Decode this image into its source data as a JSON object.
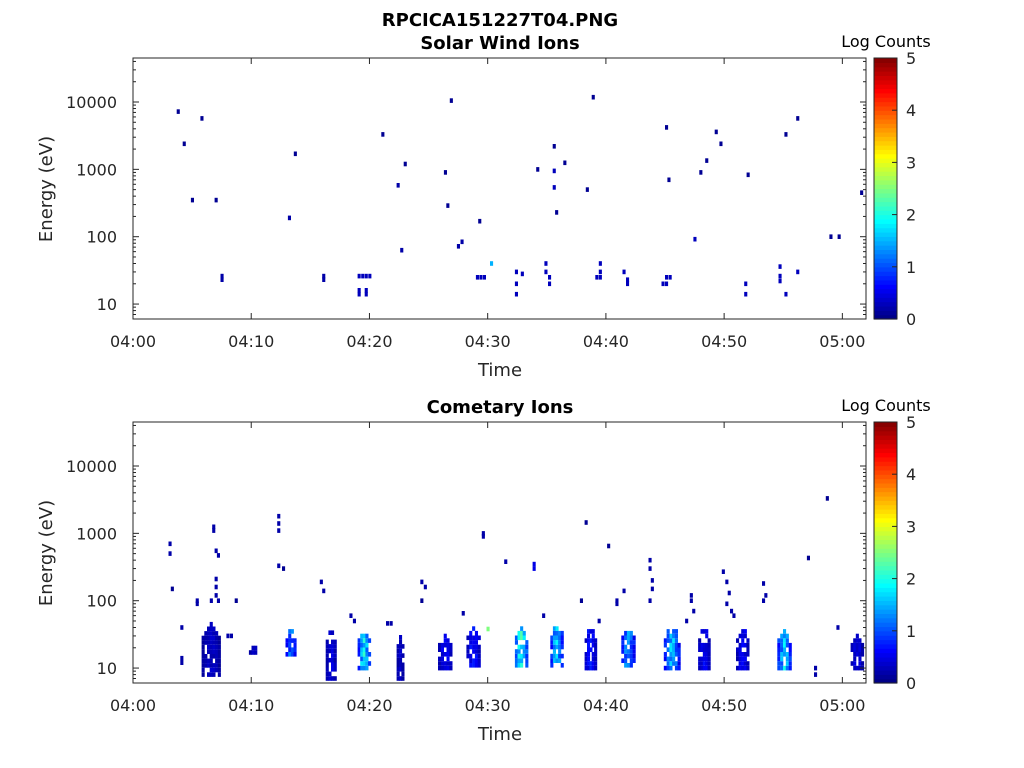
{
  "figure": {
    "title": "RPCICA151227T04.PNG"
  },
  "colormap": {
    "stops": [
      "#00007f",
      "#0000ff",
      "#007fff",
      "#00ffff",
      "#7fff7f",
      "#ffff00",
      "#ff7f00",
      "#ff0000",
      "#7f0000"
    ]
  },
  "chart_data": [
    {
      "type": "heatmap",
      "title": "Solar Wind Ions",
      "xlabel": "Time",
      "ylabel": "Energy (eV)",
      "x_range_minutes": [
        0,
        62
      ],
      "x_ticks": [
        {
          "minute": 0,
          "label": "04:00"
        },
        {
          "minute": 10,
          "label": "04:10"
        },
        {
          "minute": 20,
          "label": "04:20"
        },
        {
          "minute": 30,
          "label": "04:30"
        },
        {
          "minute": 40,
          "label": "04:40"
        },
        {
          "minute": 50,
          "label": "04:50"
        },
        {
          "minute": 60,
          "label": "05:00"
        }
      ],
      "y_scale": "log",
      "y_range": [
        6,
        45000
      ],
      "y_ticks": [
        {
          "value": 10,
          "label": "10"
        },
        {
          "value": 100,
          "label": "100"
        },
        {
          "value": 1000,
          "label": "1000"
        },
        {
          "value": 10000,
          "label": "10000"
        }
      ],
      "colorbar": {
        "label": "Log Counts",
        "range": [
          0,
          5
        ],
        "ticks": [
          "0",
          "1",
          "2",
          "3",
          "4",
          "5"
        ]
      },
      "cells": [
        [
          3.7,
          7200,
          0.1
        ],
        [
          4.2,
          2400,
          0.1
        ],
        [
          4.9,
          350,
          0.1
        ],
        [
          5.7,
          5700,
          0.1
        ],
        [
          6.9,
          350,
          0.1
        ],
        [
          7.4,
          26,
          0.2
        ],
        [
          7.4,
          23,
          0.2
        ],
        [
          13.1,
          190,
          0.2
        ],
        [
          13.6,
          1700,
          0.1
        ],
        [
          16.0,
          26,
          0.2
        ],
        [
          16.0,
          23,
          0.2
        ],
        [
          19.0,
          26,
          0.3
        ],
        [
          19.3,
          26,
          0.3
        ],
        [
          19.6,
          26,
          0.3
        ],
        [
          19.9,
          26,
          0.3
        ],
        [
          19.0,
          14,
          0.3
        ],
        [
          19.6,
          14,
          0.3
        ],
        [
          19.0,
          16,
          0.3
        ],
        [
          19.6,
          16,
          0.3
        ],
        [
          21.0,
          3300,
          0.1
        ],
        [
          22.3,
          580,
          0.2
        ],
        [
          22.6,
          63,
          0.2
        ],
        [
          22.9,
          1200,
          0.1
        ],
        [
          26.3,
          900,
          0.1
        ],
        [
          26.5,
          290,
          0.1
        ],
        [
          26.8,
          10500,
          0.1
        ],
        [
          27.4,
          72,
          0.2
        ],
        [
          27.7,
          84,
          0.2
        ],
        [
          29.2,
          170,
          0.1
        ],
        [
          29.0,
          25,
          0.3
        ],
        [
          29.3,
          25,
          0.3
        ],
        [
          29.6,
          25,
          0.3
        ],
        [
          30.2,
          40,
          1.5
        ],
        [
          32.3,
          30,
          0.3
        ],
        [
          32.3,
          20,
          0.3
        ],
        [
          32.3,
          14,
          0.3
        ],
        [
          32.8,
          28,
          0.3
        ],
        [
          34.1,
          1000,
          0.1
        ],
        [
          34.8,
          40,
          0.3
        ],
        [
          34.8,
          30,
          0.3
        ],
        [
          35.1,
          25,
          0.3
        ],
        [
          35.1,
          20,
          0.3
        ],
        [
          35.5,
          950,
          0.3
        ],
        [
          35.5,
          540,
          0.3
        ],
        [
          35.5,
          2200,
          0.1
        ],
        [
          35.7,
          230,
          0.1
        ],
        [
          36.4,
          1250,
          0.1
        ],
        [
          38.3,
          500,
          0.1
        ],
        [
          38.8,
          11800,
          0.1
        ],
        [
          39.4,
          40,
          0.3
        ],
        [
          39.4,
          30,
          0.3
        ],
        [
          39.4,
          25,
          0.3
        ],
        [
          39.1,
          25,
          0.3
        ],
        [
          41.4,
          30,
          0.3
        ],
        [
          41.7,
          20,
          0.3
        ],
        [
          41.7,
          23,
          0.3
        ],
        [
          44.7,
          20,
          0.3
        ],
        [
          45.0,
          4200,
          0.1
        ],
        [
          45.2,
          700,
          0.1
        ],
        [
          45.0,
          25,
          0.3
        ],
        [
          45.3,
          25,
          0.3
        ],
        [
          45.0,
          20,
          0.3
        ],
        [
          47.4,
          92,
          0.3
        ],
        [
          47.9,
          900,
          0.1
        ],
        [
          48.4,
          1350,
          0.1
        ],
        [
          49.2,
          3600,
          0.1
        ],
        [
          49.6,
          2400,
          0.1
        ],
        [
          51.7,
          20,
          0.3
        ],
        [
          51.7,
          14,
          0.3
        ],
        [
          51.9,
          830,
          0.1
        ],
        [
          54.6,
          36,
          0.3
        ],
        [
          54.6,
          26,
          0.3
        ],
        [
          54.6,
          22,
          0.3
        ],
        [
          55.1,
          14,
          0.3
        ],
        [
          55.1,
          3300,
          0.1
        ],
        [
          56.1,
          5700,
          0.1
        ],
        [
          56.1,
          30,
          0.3
        ],
        [
          58.9,
          100,
          0.1
        ],
        [
          59.6,
          100,
          0.1
        ],
        [
          61.5,
          450,
          0.1
        ]
      ]
    },
    {
      "type": "heatmap",
      "title": "Cometary Ions",
      "xlabel": "Time",
      "ylabel": "Energy (eV)",
      "x_range_minutes": [
        0,
        62
      ],
      "x_ticks": [
        {
          "minute": 0,
          "label": "04:00"
        },
        {
          "minute": 10,
          "label": "04:10"
        },
        {
          "minute": 20,
          "label": "04:20"
        },
        {
          "minute": 30,
          "label": "04:30"
        },
        {
          "minute": 40,
          "label": "04:40"
        },
        {
          "minute": 50,
          "label": "04:50"
        },
        {
          "minute": 60,
          "label": "05:00"
        }
      ],
      "y_scale": "log",
      "y_range": [
        6,
        45000
      ],
      "y_ticks": [
        {
          "value": 10,
          "label": "10"
        },
        {
          "value": 100,
          "label": "100"
        },
        {
          "value": 1000,
          "label": "1000"
        },
        {
          "value": 10000,
          "label": "10000"
        }
      ],
      "colorbar": {
        "label": "Log Counts",
        "range": [
          0,
          5
        ],
        "ticks": [
          "0",
          "1",
          "2",
          "3",
          "4",
          "5"
        ]
      },
      "bursts": [
        {
          "t": 5.8,
          "w": 1.6,
          "lo": 8,
          "hi": 45,
          "c": 0.3
        },
        {
          "t": 9.8,
          "w": 0.9,
          "lo": 17,
          "hi": 20,
          "c": 0.3
        },
        {
          "t": 12.9,
          "w": 0.9,
          "lo": 16,
          "hi": 36,
          "c": 1.0
        },
        {
          "t": 16.3,
          "w": 0.9,
          "lo": 7,
          "hi": 36,
          "c": 0.4
        },
        {
          "t": 19.0,
          "w": 1.1,
          "lo": 10,
          "hi": 36,
          "c": 1.5
        },
        {
          "t": 22.3,
          "w": 0.6,
          "lo": 7,
          "hi": 30,
          "c": 0.3
        },
        {
          "t": 25.8,
          "w": 1.2,
          "lo": 10,
          "hi": 32,
          "c": 0.5
        },
        {
          "t": 28.2,
          "w": 1.2,
          "lo": 11,
          "hi": 40,
          "c": 0.6
        },
        {
          "t": 32.3,
          "w": 1.1,
          "lo": 11,
          "hi": 40,
          "c": 1.7
        },
        {
          "t": 35.3,
          "w": 1.1,
          "lo": 11,
          "hi": 45,
          "c": 1.3
        },
        {
          "t": 38.2,
          "w": 1.0,
          "lo": 10,
          "hi": 38,
          "c": 0.6
        },
        {
          "t": 41.3,
          "w": 1.2,
          "lo": 11,
          "hi": 40,
          "c": 1.2
        },
        {
          "t": 44.9,
          "w": 1.4,
          "lo": 10,
          "hi": 40,
          "c": 1.3
        },
        {
          "t": 47.8,
          "w": 1.0,
          "lo": 10,
          "hi": 40,
          "c": 0.5
        },
        {
          "t": 51.0,
          "w": 1.1,
          "lo": 10,
          "hi": 40,
          "c": 0.5
        },
        {
          "t": 54.5,
          "w": 1.2,
          "lo": 10,
          "hi": 40,
          "c": 1.4
        },
        {
          "t": 60.7,
          "w": 1.1,
          "lo": 10,
          "hi": 30,
          "c": 0.4
        }
      ],
      "cells": [
        [
          3.0,
          500,
          0.2
        ],
        [
          3.0,
          700,
          0.2
        ],
        [
          3.2,
          150,
          0.1
        ],
        [
          4.0,
          40,
          0.2
        ],
        [
          4.0,
          14,
          0.2
        ],
        [
          4.0,
          12,
          0.2
        ],
        [
          5.3,
          100,
          0.2
        ],
        [
          5.3,
          90,
          0.2
        ],
        [
          6.5,
          100,
          0.2
        ],
        [
          6.7,
          1250,
          0.2
        ],
        [
          6.7,
          1100,
          0.2
        ],
        [
          6.9,
          210,
          0.2
        ],
        [
          6.9,
          160,
          0.2
        ],
        [
          6.9,
          120,
          0.2
        ],
        [
          7.1,
          100,
          0.2
        ],
        [
          6.9,
          550,
          0.2
        ],
        [
          7.1,
          470,
          0.2
        ],
        [
          7.9,
          30,
          0.2
        ],
        [
          8.2,
          30,
          0.2
        ],
        [
          8.6,
          100,
          0.1
        ],
        [
          12.2,
          1800,
          0.2
        ],
        [
          12.2,
          1400,
          0.2
        ],
        [
          12.2,
          1100,
          0.2
        ],
        [
          12.2,
          330,
          0.2
        ],
        [
          12.6,
          300,
          0.1
        ],
        [
          15.8,
          190,
          0.2
        ],
        [
          16.0,
          140,
          0.2
        ],
        [
          18.3,
          60,
          0.2
        ],
        [
          18.6,
          50,
          0.2
        ],
        [
          21.4,
          46,
          0.2
        ],
        [
          21.7,
          46,
          0.2
        ],
        [
          24.3,
          190,
          0.2
        ],
        [
          24.6,
          160,
          0.2
        ],
        [
          24.3,
          100,
          0.1
        ],
        [
          27.8,
          65,
          0.2
        ],
        [
          29.5,
          1000,
          0.2
        ],
        [
          29.5,
          900,
          0.2
        ],
        [
          29.9,
          38,
          2.5
        ],
        [
          31.4,
          380,
          0.2
        ],
        [
          33.8,
          350,
          0.5
        ],
        [
          33.8,
          300,
          0.5
        ],
        [
          34.6,
          60,
          0.2
        ],
        [
          38.2,
          1450,
          0.1
        ],
        [
          37.8,
          100,
          0.1
        ],
        [
          39.3,
          50,
          0.2
        ],
        [
          40.1,
          650,
          0.1
        ],
        [
          40.8,
          100,
          0.2
        ],
        [
          40.8,
          90,
          0.2
        ],
        [
          41.4,
          140,
          0.2
        ],
        [
          43.6,
          400,
          0.2
        ],
        [
          43.6,
          300,
          0.2
        ],
        [
          43.8,
          200,
          0.2
        ],
        [
          43.8,
          150,
          0.2
        ],
        [
          43.6,
          100,
          0.2
        ],
        [
          47.1,
          120,
          0.2
        ],
        [
          47.1,
          100,
          0.2
        ],
        [
          47.3,
          70,
          0.2
        ],
        [
          46.7,
          50,
          0.2
        ],
        [
          50.1,
          190,
          0.2
        ],
        [
          50.3,
          130,
          0.2
        ],
        [
          50.1,
          90,
          0.2
        ],
        [
          50.5,
          70,
          0.2
        ],
        [
          50.7,
          60,
          0.2
        ],
        [
          49.8,
          270,
          0.2
        ],
        [
          53.2,
          180,
          0.2
        ],
        [
          53.4,
          120,
          0.2
        ],
        [
          53.2,
          100,
          0.2
        ],
        [
          57.0,
          430,
          0.1
        ],
        [
          57.6,
          10,
          0.2
        ],
        [
          57.6,
          8,
          0.2
        ],
        [
          59.5,
          40,
          0.2
        ],
        [
          58.6,
          3300,
          0.1
        ]
      ]
    }
  ]
}
